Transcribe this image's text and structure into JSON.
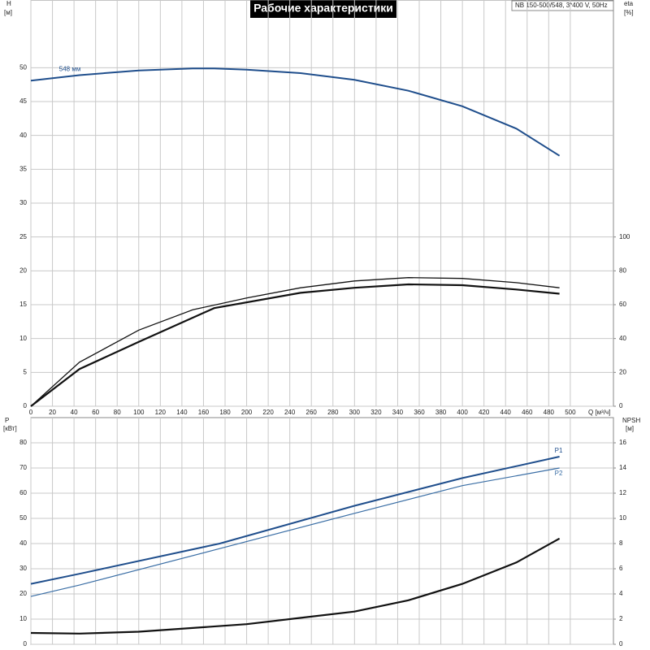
{
  "chart_data": [
    {
      "type": "line",
      "title": "Рабочие характеристики",
      "subtitle": "NB 150-500/548, 3*400 V, 50Hz",
      "xlabel": "Q [м³/ч]",
      "ylabel": "H",
      "ylabel_unit": "[м]",
      "y2label": "eta",
      "y2label_unit": "[%]",
      "xlim": [
        0,
        540
      ],
      "xticks": [
        0,
        20,
        40,
        60,
        80,
        100,
        120,
        140,
        160,
        180,
        200,
        220,
        240,
        260,
        280,
        300,
        320,
        340,
        360,
        380,
        400,
        420,
        440,
        460,
        480,
        500
      ],
      "ylim": [
        0,
        60
      ],
      "yticks": [
        0,
        5,
        10,
        15,
        20,
        25,
        30,
        35,
        40,
        45,
        50
      ],
      "y2lim": [
        0,
        240
      ],
      "y2ticks": [
        0,
        20,
        40,
        60,
        80,
        100
      ],
      "grid": true,
      "series": [
        {
          "name": "548 мм",
          "color": "#1f4e8c",
          "x": [
            0,
            45,
            100,
            150,
            170,
            200,
            250,
            300,
            350,
            400,
            450,
            490
          ],
          "values": [
            48.1,
            48.9,
            49.6,
            49.9,
            49.9,
            49.7,
            49.2,
            48.2,
            46.6,
            44.3,
            41.0,
            37.0
          ]
        },
        {
          "color": "#111111",
          "axis": "y2",
          "x": [
            0,
            45,
            100,
            150,
            200,
            250,
            300,
            350,
            400,
            450,
            490
          ],
          "values": [
            0,
            26,
            45,
            57,
            64,
            70,
            74,
            76,
            75.5,
            73,
            70
          ]
        },
        {
          "color": "#111111",
          "axis": "y2",
          "x": [
            0,
            45,
            100,
            170,
            250,
            300,
            350,
            400,
            450,
            490
          ],
          "values": [
            0,
            22,
            38,
            58,
            67,
            70,
            72,
            71.5,
            69,
            66.5
          ]
        }
      ]
    },
    {
      "type": "line",
      "ylabel": "P",
      "ylabel_unit": "[кВт]",
      "y2label": "NPSH",
      "y2label_unit": "[м]",
      "xlim": [
        0,
        540
      ],
      "xticks": [
        0,
        20,
        40,
        60,
        80,
        100,
        120,
        140,
        160,
        180,
        200,
        220,
        240,
        260,
        280,
        300,
        320,
        340,
        360,
        380,
        400,
        420,
        440,
        460,
        480,
        500
      ],
      "ylim": [
        0,
        90
      ],
      "yticks": [
        0,
        10,
        20,
        30,
        40,
        50,
        60,
        70,
        80
      ],
      "y2lim": [
        0,
        18
      ],
      "y2ticks": [
        0,
        2,
        4,
        6,
        8,
        10,
        12,
        14,
        16
      ],
      "grid": true,
      "series": [
        {
          "name": "P1",
          "color": "#1f4e8c",
          "x": [
            0,
            45,
            175,
            300,
            400,
            490
          ],
          "values": [
            24,
            28,
            40,
            55,
            66,
            74.5
          ]
        },
        {
          "name": "P2",
          "color": "#3a6ea5",
          "x": [
            0,
            45,
            175,
            300,
            400,
            490
          ],
          "values": [
            19,
            23.5,
            38,
            52,
            63,
            70
          ]
        },
        {
          "color": "#111111",
          "axis": "y2",
          "x": [
            0,
            45,
            100,
            200,
            300,
            350,
            400,
            450,
            490
          ],
          "values": [
            0.9,
            0.85,
            1.0,
            1.6,
            2.6,
            3.5,
            4.8,
            6.5,
            8.4
          ]
        }
      ]
    }
  ]
}
